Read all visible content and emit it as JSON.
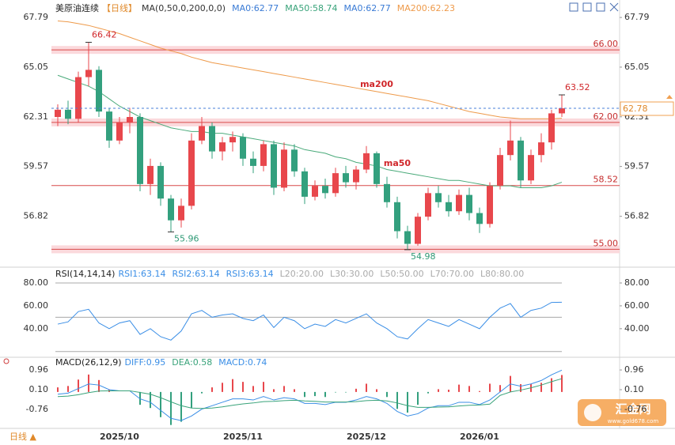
{
  "chart_data": [
    {
      "type": "candlestick",
      "title": "美原油连续",
      "period": "【日线】",
      "legend": [
        {
          "text": "MA(0,50,0,200,0,0)",
          "color": "#333333"
        },
        {
          "text": "MA0:62.77",
          "color": "#3a7bd5"
        },
        {
          "text": "MA50:58.74",
          "color": "#39a37a"
        },
        {
          "text": "MA0:62.77",
          "color": "#3a7bd5"
        },
        {
          "text": "MA200:62.23",
          "color": "#ee9a4a"
        }
      ],
      "categories": [
        null,
        null,
        null,
        null,
        null,
        null,
        "2025/10",
        null,
        null,
        null,
        null,
        null,
        null,
        null,
        null,
        null,
        null,
        null,
        "2025/11",
        null,
        null,
        null,
        null,
        null,
        null,
        null,
        null,
        null,
        null,
        null,
        "2025/12",
        null,
        null,
        null,
        null,
        null,
        null,
        null,
        null,
        null,
        null,
        "2026/01",
        null,
        null,
        null,
        null,
        null,
        null,
        null,
        null
      ],
      "open": [
        62.3,
        62.7,
        62.2,
        64.5,
        64.9,
        62.6,
        61.0,
        62.0,
        62.3,
        58.6,
        59.6,
        57.8,
        56.6,
        57.4,
        61.0,
        61.8,
        60.4,
        60.9,
        61.2,
        60.0,
        59.6,
        60.8,
        58.4,
        60.5,
        59.3,
        57.9,
        58.5,
        58.1,
        59.2,
        58.7,
        59.4,
        60.3,
        58.6,
        57.6,
        56.0,
        55.3,
        56.8,
        58.1,
        57.6,
        57.1,
        58.0,
        57.0,
        56.4,
        58.5,
        60.2,
        61.0,
        58.8,
        60.2,
        60.9,
        62.5
      ],
      "high": [
        63.0,
        63.2,
        64.8,
        66.42,
        65.1,
        62.8,
        62.3,
        62.8,
        62.5,
        60.0,
        59.8,
        58.0,
        57.8,
        61.4,
        62.3,
        62.0,
        61.2,
        61.5,
        61.4,
        60.4,
        61.0,
        61.0,
        60.9,
        60.8,
        59.5,
        58.8,
        58.9,
        59.5,
        59.6,
        59.6,
        60.7,
        60.4,
        59.0,
        57.9,
        56.3,
        57.0,
        58.4,
        58.5,
        58.0,
        58.3,
        58.4,
        57.3,
        58.7,
        60.6,
        62.1,
        61.2,
        60.5,
        61.4,
        62.7,
        63.52
      ],
      "low": [
        61.8,
        61.9,
        62.0,
        64.0,
        62.3,
        60.6,
        60.8,
        61.4,
        58.2,
        58.0,
        57.4,
        55.96,
        56.2,
        57.2,
        60.8,
        60.0,
        59.9,
        60.4,
        59.6,
        59.2,
        59.3,
        58.0,
        58.2,
        59.0,
        57.5,
        57.7,
        57.8,
        57.9,
        58.4,
        58.3,
        59.2,
        58.4,
        57.3,
        55.6,
        54.98,
        55.2,
        56.6,
        57.3,
        56.8,
        56.9,
        56.6,
        55.9,
        56.2,
        58.3,
        59.9,
        58.4,
        58.6,
        59.8,
        60.5,
        62.3
      ],
      "close": [
        62.7,
        62.2,
        64.5,
        64.9,
        62.6,
        61.0,
        62.0,
        62.3,
        58.6,
        59.6,
        57.8,
        56.6,
        57.4,
        61.0,
        61.8,
        60.4,
        60.9,
        61.2,
        60.0,
        59.6,
        60.8,
        58.4,
        60.5,
        59.3,
        57.9,
        58.5,
        58.1,
        59.2,
        58.7,
        59.4,
        60.3,
        58.6,
        57.6,
        56.0,
        55.3,
        56.8,
        58.1,
        57.6,
        57.1,
        58.0,
        57.0,
        56.4,
        58.5,
        60.2,
        61.0,
        58.8,
        60.2,
        60.9,
        62.5,
        62.78
      ],
      "up_color": "#e8474c",
      "down_color": "#33a07e",
      "series": [
        {
          "name": "ma200",
          "color": "#ee9a4a",
          "values": [
            67.6,
            67.55,
            67.45,
            67.35,
            67.2,
            67.05,
            66.9,
            66.7,
            66.5,
            66.3,
            66.1,
            65.95,
            65.8,
            65.6,
            65.45,
            65.3,
            65.2,
            65.1,
            65.0,
            64.9,
            64.8,
            64.7,
            64.6,
            64.5,
            64.4,
            64.3,
            64.2,
            64.1,
            64.0,
            63.9,
            63.8,
            63.7,
            63.6,
            63.5,
            63.4,
            63.3,
            63.2,
            63.05,
            62.9,
            62.75,
            62.6,
            62.5,
            62.4,
            62.3,
            62.25,
            62.2,
            62.2,
            62.2,
            62.2,
            62.23
          ]
        },
        {
          "name": "ma50",
          "color": "#4aaa7a",
          "values": [
            64.6,
            64.4,
            64.2,
            64.0,
            63.7,
            63.3,
            62.9,
            62.6,
            62.3,
            62.1,
            61.9,
            61.7,
            61.6,
            61.5,
            61.5,
            61.4,
            61.4,
            61.3,
            61.2,
            61.1,
            61.0,
            60.9,
            60.8,
            60.7,
            60.5,
            60.4,
            60.3,
            60.1,
            60.0,
            59.8,
            59.7,
            59.6,
            59.4,
            59.3,
            59.2,
            59.1,
            59.0,
            58.9,
            58.8,
            58.8,
            58.7,
            58.6,
            58.5,
            58.5,
            58.5,
            58.4,
            58.4,
            58.4,
            58.5,
            58.7
          ]
        }
      ],
      "levels": [
        {
          "value": 66,
          "label": "66.00",
          "band": true
        },
        {
          "value": 62,
          "label": "62.00",
          "band": true
        },
        {
          "value": 58.52,
          "band": false
        },
        {
          "value": 55,
          "label": "55.00",
          "band": true
        }
      ],
      "ylim": [
        54.8,
        68.1
      ],
      "yticks": [
        67.79,
        65.05,
        62.31,
        59.57,
        56.82
      ]
    },
    {
      "type": "line",
      "title": "RSI(14,14,14)",
      "legend": [
        {
          "text": "RSI1:63.14",
          "color": "#3a8ee6"
        },
        {
          "text": "RSI2:63.14",
          "color": "#3a8ee6"
        },
        {
          "text": "RSI3:63.14",
          "color": "#3a8ee6"
        },
        {
          "text": "L20:20.00",
          "color": "#aaaaaa"
        },
        {
          "text": "L30:30.00",
          "color": "#aaaaaa"
        },
        {
          "text": "L50:50.00",
          "color": "#aaaaaa"
        },
        {
          "text": "L70:70.00",
          "color": "#aaaaaa"
        },
        {
          "text": "L80:80.00",
          "color": "#aaaaaa"
        }
      ],
      "series": [
        {
          "color": "#3a8ee6",
          "values": [
            44,
            46,
            55,
            57,
            45,
            40,
            45,
            47,
            35,
            40,
            33,
            30,
            38,
            53,
            56,
            50,
            52,
            53,
            49,
            47,
            52,
            41,
            50,
            47,
            40,
            44,
            42,
            48,
            45,
            49,
            53,
            45,
            40,
            33,
            31,
            40,
            48,
            45,
            42,
            48,
            44,
            40,
            50,
            58,
            62,
            50,
            56,
            58,
            63,
            63.14
          ]
        }
      ],
      "hlines": [
        80,
        50,
        20
      ],
      "ylim": [
        15,
        89
      ],
      "yticks": [
        {
          "value": 80,
          "label": "80.00"
        },
        {
          "value": 60,
          "label": "60.00"
        },
        {
          "value": 40,
          "label": "40.00"
        }
      ]
    },
    {
      "type": "macd",
      "title": "MACD(26,12,9)",
      "legend": [
        {
          "text": "DIFF:0.95",
          "color": "#3a8ee6"
        },
        {
          "text": "DEA:0.58",
          "color": "#39a37a"
        },
        {
          "text": "MACD:0.74",
          "color": "#3a8ee6"
        }
      ],
      "series": [
        {
          "color": "#3a8ee6",
          "values": [
            -0.1,
            -0.05,
            0.15,
            0.35,
            0.3,
            0.1,
            0.05,
            0.05,
            -0.3,
            -0.45,
            -0.8,
            -1.15,
            -1.25,
            -1.05,
            -0.75,
            -0.6,
            -0.45,
            -0.3,
            -0.3,
            -0.35,
            -0.2,
            -0.35,
            -0.25,
            -0.3,
            -0.5,
            -0.5,
            -0.55,
            -0.45,
            -0.45,
            -0.35,
            -0.2,
            -0.3,
            -0.5,
            -0.85,
            -1.05,
            -0.95,
            -0.7,
            -0.6,
            -0.6,
            -0.45,
            -0.45,
            -0.55,
            -0.35,
            0.0,
            0.35,
            0.25,
            0.35,
            0.5,
            0.75,
            0.95
          ]
        },
        {
          "color": "#39a37a",
          "values": [
            -0.2,
            -0.18,
            -0.12,
            -0.03,
            0.04,
            0.05,
            0.05,
            0.05,
            -0.02,
            -0.1,
            -0.25,
            -0.43,
            -0.6,
            -0.7,
            -0.72,
            -0.7,
            -0.65,
            -0.58,
            -0.52,
            -0.48,
            -0.42,
            -0.41,
            -0.38,
            -0.36,
            -0.39,
            -0.41,
            -0.44,
            -0.44,
            -0.44,
            -0.42,
            -0.38,
            -0.36,
            -0.39,
            -0.48,
            -0.6,
            -0.67,
            -0.67,
            -0.66,
            -0.65,
            -0.61,
            -0.58,
            -0.57,
            -0.53,
            -0.15,
            0.0,
            0.08,
            0.18,
            0.3,
            0.45,
            0.58
          ]
        }
      ],
      "histogram": {
        "up_color": "#e8474c",
        "down_color": "#33a07e",
        "values": [
          0.2,
          0.26,
          0.54,
          0.76,
          0.52,
          0.1,
          0,
          0,
          -0.56,
          -0.7,
          -1.1,
          -1.44,
          -1.3,
          -0.7,
          -0.06,
          0.2,
          0.4,
          0.56,
          0.44,
          0.26,
          0.44,
          0.12,
          0.26,
          0.12,
          -0.22,
          -0.18,
          -0.22,
          -0.02,
          -0.02,
          0.14,
          0.36,
          0.12,
          -0.22,
          -0.74,
          -0.9,
          -0.56,
          -0.06,
          0.12,
          0.1,
          0.32,
          0.26,
          0.04,
          0.36,
          0.3,
          0.7,
          0.34,
          0.34,
          0.4,
          0.6,
          0.74
        ]
      },
      "ylim": [
        -1.59,
        1.41
      ],
      "yticks": [
        0.96,
        {
          "value": 0.1,
          "label": "0.10"
        },
        -0.76
      ]
    }
  ],
  "footer": {
    "period": "日线 ▲",
    "watermark": "汇金网",
    "watermark_url": "www.gold678.com"
  }
}
